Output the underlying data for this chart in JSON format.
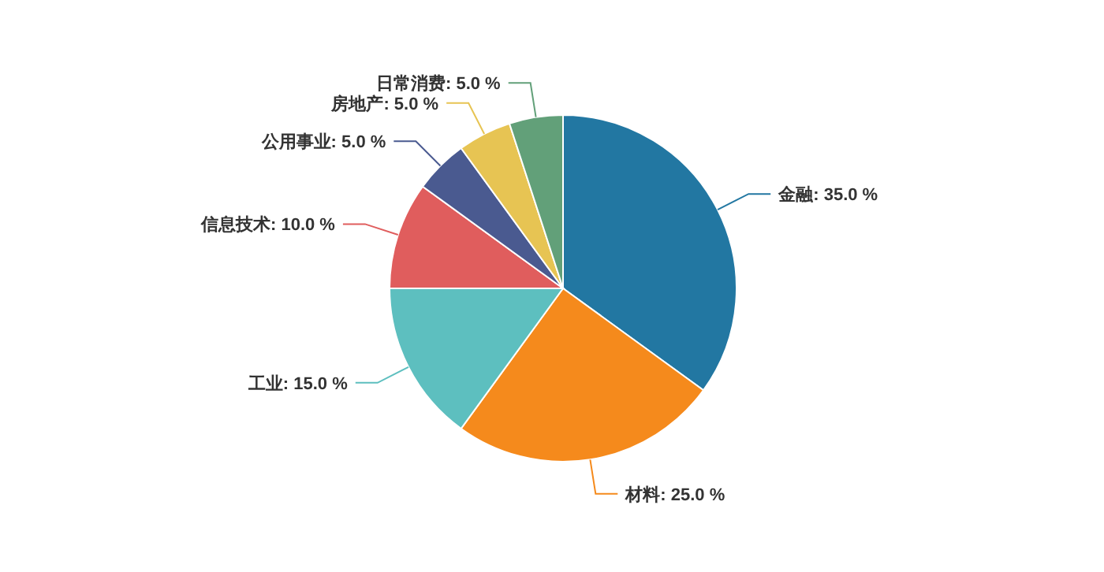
{
  "chart_data": {
    "type": "pie",
    "categories": [
      "金融",
      "材料",
      "工业",
      "信息技术",
      "公用事业",
      "房地产",
      "日常消费"
    ],
    "values": [
      35,
      25,
      15,
      10,
      5,
      5,
      5
    ],
    "value_labels": [
      "35.0 %",
      "25.0 %",
      "15.0 %",
      "10.0 %",
      "5.0 %",
      "5.0 %",
      "5.0 %"
    ],
    "colors": [
      "#2277a2",
      "#f58a1c",
      "#5dbfbf",
      "#e05d5d",
      "#4a5a90",
      "#e7c453",
      "#62a079"
    ]
  }
}
